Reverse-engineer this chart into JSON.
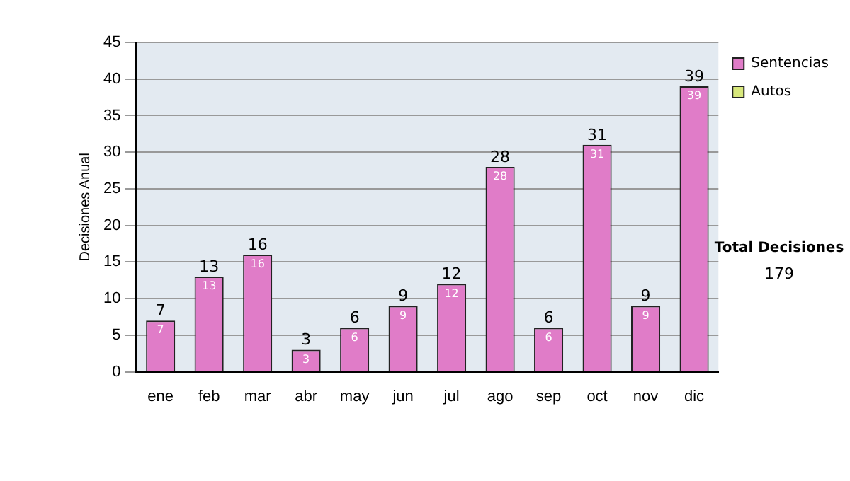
{
  "chart_data": {
    "type": "bar",
    "ylabel": "Decisiones Anual",
    "categories": [
      "ene",
      "feb",
      "mar",
      "abr",
      "may",
      "jun",
      "jul",
      "ago",
      "sep",
      "oct",
      "nov",
      "dic"
    ],
    "series": [
      {
        "name": "Sentencias",
        "color": "#e07cc8",
        "values": [
          7,
          13,
          16,
          3,
          6,
          9,
          12,
          28,
          6,
          31,
          9,
          39
        ]
      },
      {
        "name": "Autos",
        "color": "#d8e87c",
        "values": [
          null,
          null,
          null,
          null,
          null,
          null,
          null,
          null,
          null,
          null,
          null,
          null
        ]
      }
    ],
    "stacked": true,
    "ylim": [
      0,
      45
    ],
    "yticks": [
      0,
      5,
      10,
      15,
      20,
      25,
      30,
      35,
      40,
      45
    ],
    "grid": "y",
    "legend": "right",
    "data_labels": true,
    "totals": [
      "7",
      "13",
      "16",
      "3",
      "6",
      "9",
      "12",
      "28",
      "6",
      "31",
      "9",
      "39"
    ],
    "annotations": [
      "Total Decisiones",
      "179"
    ]
  }
}
